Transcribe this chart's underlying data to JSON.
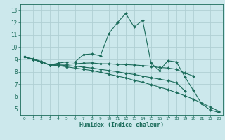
{
  "xlabel": "Humidex (Indice chaleur)",
  "xlim": [
    -0.5,
    23.5
  ],
  "ylim": [
    4.5,
    13.5
  ],
  "xticks": [
    0,
    1,
    2,
    3,
    4,
    5,
    6,
    7,
    8,
    9,
    10,
    11,
    12,
    13,
    14,
    15,
    16,
    17,
    18,
    19,
    20,
    21,
    22,
    23
  ],
  "yticks": [
    5,
    6,
    7,
    8,
    9,
    10,
    11,
    12,
    13
  ],
  "bg_color": "#cce8ec",
  "line_color": "#1a6b5a",
  "grid_color": "#b0cfd4",
  "lines": [
    {
      "x": [
        0,
        1,
        2,
        3,
        4,
        5,
        6,
        7,
        8,
        9,
        10,
        11,
        12,
        13,
        14,
        15,
        16,
        17,
        18,
        19,
        20,
        21,
        22,
        23
      ],
      "y": [
        9.2,
        9.0,
        8.8,
        8.55,
        8.7,
        8.8,
        8.8,
        9.4,
        9.45,
        9.3,
        11.1,
        12.0,
        12.75,
        11.65,
        12.2,
        8.7,
        8.1,
        8.9,
        8.8,
        7.6,
        6.5,
        5.4,
        4.9,
        4.7
      ]
    },
    {
      "x": [
        0,
        1,
        2,
        3,
        4,
        5,
        6,
        7,
        8,
        9,
        10,
        11,
        12,
        13,
        14,
        15,
        16,
        17,
        18,
        19,
        20
      ],
      "y": [
        9.2,
        9.0,
        8.8,
        8.55,
        8.6,
        8.6,
        8.65,
        8.7,
        8.72,
        8.65,
        8.65,
        8.6,
        8.58,
        8.55,
        8.5,
        8.45,
        8.35,
        8.3,
        8.2,
        7.9,
        7.65
      ]
    },
    {
      "x": [
        0,
        1,
        2,
        3,
        4,
        5,
        6,
        7,
        8,
        9,
        10,
        11,
        12,
        13,
        14,
        15,
        16,
        17,
        18,
        19
      ],
      "y": [
        9.2,
        9.0,
        8.8,
        8.55,
        8.55,
        8.5,
        8.45,
        8.38,
        8.3,
        8.2,
        8.1,
        8.0,
        7.88,
        7.78,
        7.65,
        7.52,
        7.4,
        7.28,
        7.1,
        6.45
      ]
    },
    {
      "x": [
        0,
        1,
        2,
        3,
        4,
        5,
        6,
        7,
        8,
        9,
        10,
        11,
        12,
        13,
        14,
        15,
        16,
        17,
        18,
        19,
        20,
        21,
        22,
        23
      ],
      "y": [
        9.2,
        9.05,
        8.85,
        8.55,
        8.5,
        8.4,
        8.3,
        8.2,
        8.1,
        7.95,
        7.8,
        7.65,
        7.5,
        7.3,
        7.15,
        6.95,
        6.75,
        6.55,
        6.3,
        6.05,
        5.78,
        5.45,
        5.15,
        4.8
      ]
    }
  ]
}
